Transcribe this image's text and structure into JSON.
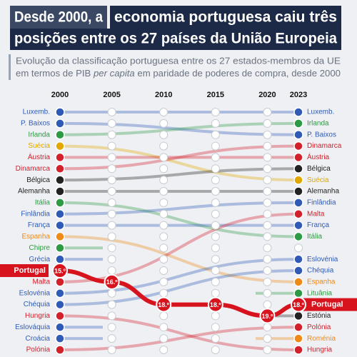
{
  "chart_data": {
    "type": "bump",
    "title": [
      "Desde 2000, a",
      "economia portuguesa caiu três",
      "posições entre os 27 países da União Europeia"
    ],
    "subtitle": [
      "Evolução da classificação portuguesa entre os 27 estados-membros da UE",
      "em termos de PIB ",
      "per capita",
      " em paridade de poderes de compra, desde 2000"
    ],
    "x": [
      2000,
      2005,
      2010,
      2015,
      2020,
      2023
    ],
    "xlim": [
      2000,
      2023
    ],
    "xticks": [
      2000,
      2005,
      2010,
      2015,
      2020,
      2023
    ],
    "ylim": [
      1,
      22
    ],
    "left_labels": [
      "Luxemb.",
      "P. Baixos",
      "Irlanda",
      "Suécia",
      "Áustria",
      "Dinamarca",
      "Bélgica",
      "Alemanha",
      "Itália",
      "Finlândia",
      "França",
      "Espanha",
      "Chipre",
      "Grécia",
      "Portugal",
      "Malta",
      "Eslovénia",
      "Chéquia",
      "Hungria",
      "Eslováquia",
      "Croácia",
      "Polónia"
    ],
    "left_colors": [
      "#2f5bb7",
      "#2f5bb7",
      "#2e9a44",
      "#e0a800",
      "#d4202b",
      "#d4202b",
      "#222222",
      "#222222",
      "#2e9a44",
      "#2f5bb7",
      "#2f5bb7",
      "#ef8a17",
      "#2e9a44",
      "#2f5bb7",
      "#d7131d",
      "#d4202b",
      "#2f5bb7",
      "#2f5bb7",
      "#d4202b",
      "#2f5bb7",
      "#2f5bb7",
      "#d4202b"
    ],
    "right_labels": [
      "Luxemb.",
      "Irlanda",
      "P. Baixos",
      "Dinamarca",
      "Áustria",
      "Bélgica",
      "Suécia",
      "Alemanha",
      "Finlândia",
      "Malta",
      "França",
      "Itália",
      null,
      "Eslovénia",
      "Chéquia",
      "Espanha",
      "Lituânia",
      "Portugal",
      "Estónia",
      "Polónia",
      "Roménia",
      "Hungria"
    ],
    "right_colors": [
      "#2f5bb7",
      "#2e9a44",
      "#2f5bb7",
      "#d4202b",
      "#d4202b",
      "#222222",
      "#e0a800",
      "#222222",
      "#2f5bb7",
      "#d4202b",
      "#2f5bb7",
      "#2e9a44",
      null,
      "#2f5bb7",
      "#2f5bb7",
      "#ef8a17",
      "#2e9a44",
      "#d7131d",
      "#222222",
      "#d4202b",
      "#ef8a17",
      "#d4202b"
    ],
    "series": [
      {
        "name": "Portugal",
        "color": "#d7131d",
        "values": [
          15,
          16,
          18,
          18,
          19,
          18
        ],
        "value_labels": [
          "15.º",
          "16.º",
          "18.º",
          "18.º",
          "19.º",
          "18.º"
        ]
      }
    ]
  }
}
